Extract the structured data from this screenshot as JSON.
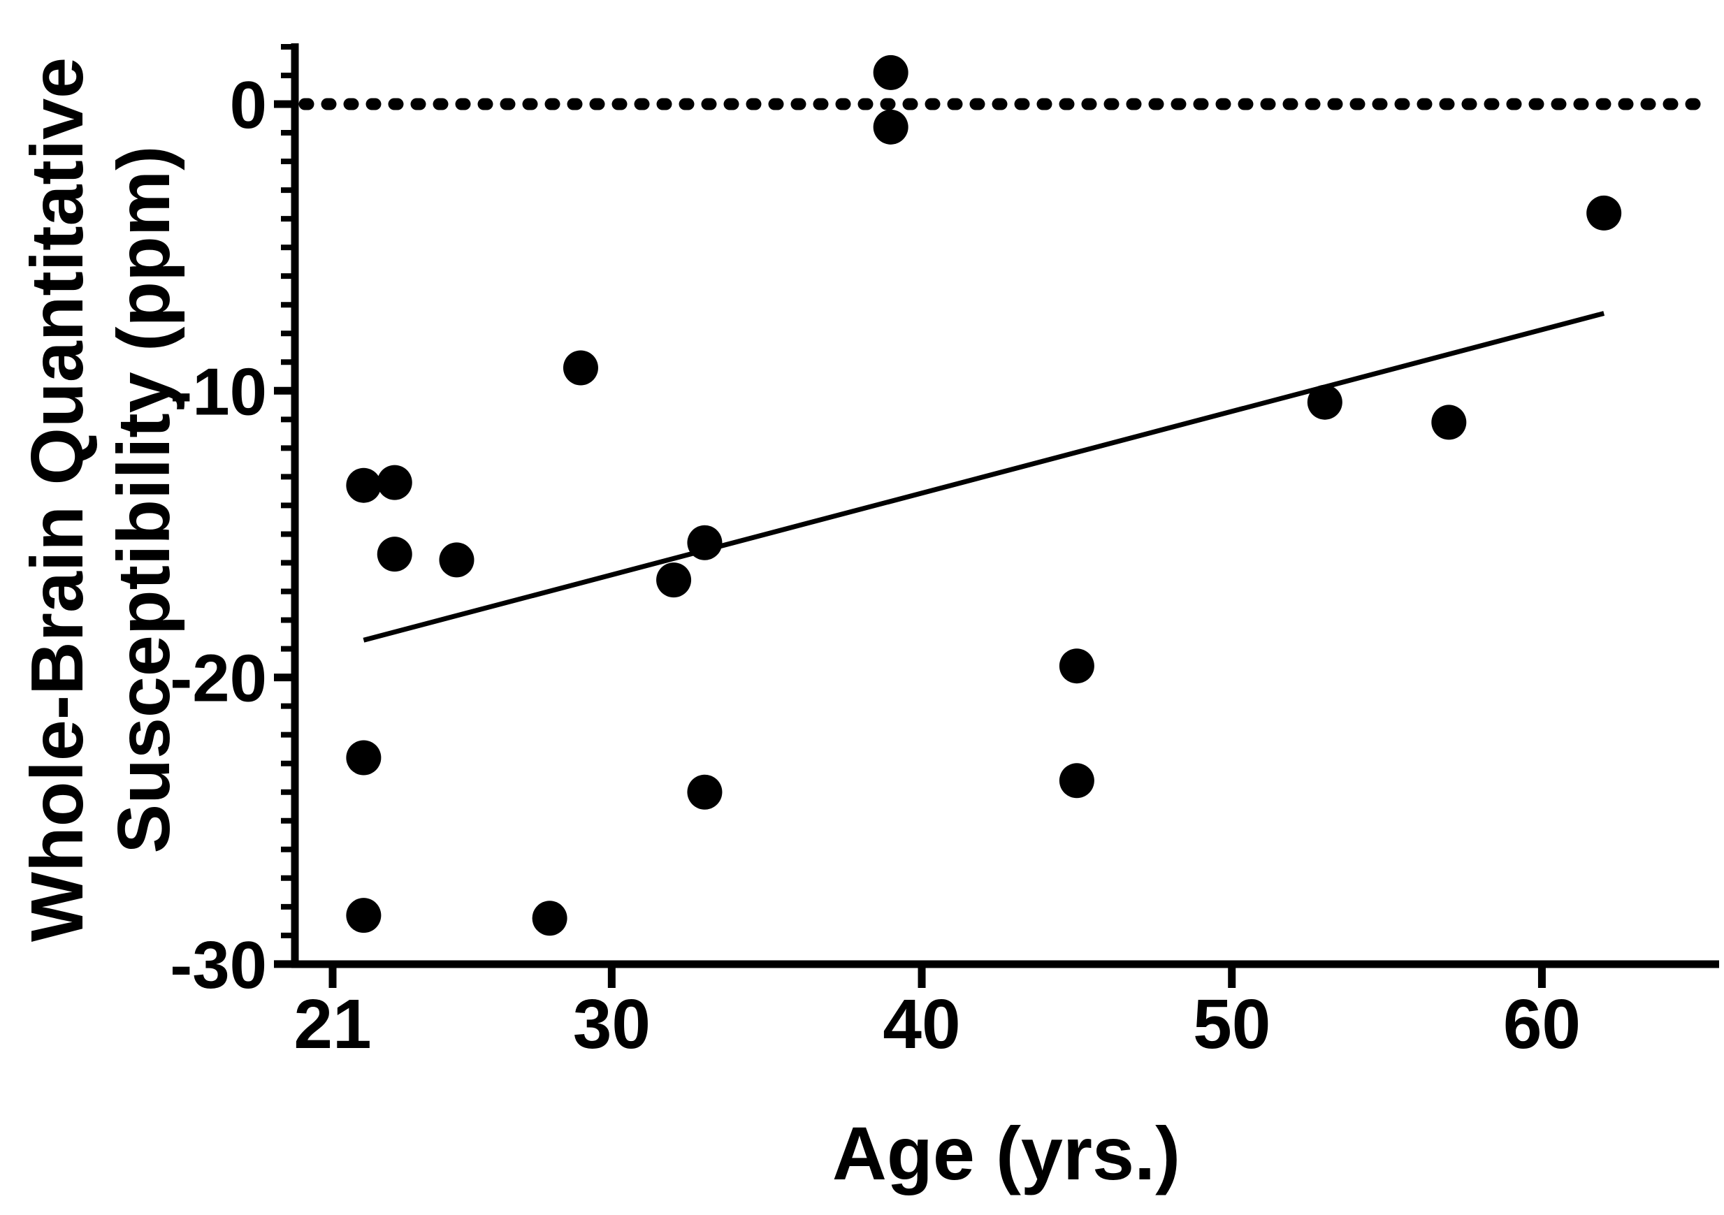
{
  "figure": {
    "background": "#ffffff",
    "ink": "#000000"
  },
  "chart_data": {
    "type": "scatter",
    "title": "",
    "xlabel": "Age (yrs.)",
    "ylabel": "Whole-Brain Quantitative Susceptibility (ppm)",
    "ylabel_lines": [
      "Whole-Brain Quantitative",
      "Susceptibility (ppm)"
    ],
    "x_ticks": [
      21,
      30,
      40,
      50,
      60
    ],
    "y_ticks": [
      0,
      -10,
      -20,
      -30
    ],
    "y_minor_tick_step": 1,
    "xlim": [
      19.8,
      65.7
    ],
    "ylim": [
      -30,
      2.1
    ],
    "grid": false,
    "legend": false,
    "marker": {
      "shape": "filled-circle",
      "color": "#000000",
      "radius_px": 25
    },
    "reference_line": {
      "type": "dotted-horizontal",
      "y": 0
    },
    "trend_line": {
      "x1": 22,
      "y1": -18.7,
      "x2": 62,
      "y2": -7.3
    },
    "points": [
      {
        "age": 22,
        "qs_ppm": -13.3
      },
      {
        "age": 23,
        "qs_ppm": -13.2
      },
      {
        "age": 23,
        "qs_ppm": -15.7
      },
      {
        "age": 25,
        "qs_ppm": -15.9
      },
      {
        "age": 22,
        "qs_ppm": -22.8
      },
      {
        "age": 22,
        "qs_ppm": -28.3
      },
      {
        "age": 28,
        "qs_ppm": -28.4
      },
      {
        "age": 29,
        "qs_ppm": -9.2
      },
      {
        "age": 32,
        "qs_ppm": -16.6
      },
      {
        "age": 33,
        "qs_ppm": -15.3
      },
      {
        "age": 33,
        "qs_ppm": -24.0
      },
      {
        "age": 39,
        "qs_ppm": 1.1
      },
      {
        "age": 39,
        "qs_ppm": -0.8
      },
      {
        "age": 45,
        "qs_ppm": -19.6
      },
      {
        "age": 45,
        "qs_ppm": -23.6
      },
      {
        "age": 53,
        "qs_ppm": -10.4
      },
      {
        "age": 57,
        "qs_ppm": -11.1
      },
      {
        "age": 62,
        "qs_ppm": -3.8
      }
    ]
  }
}
